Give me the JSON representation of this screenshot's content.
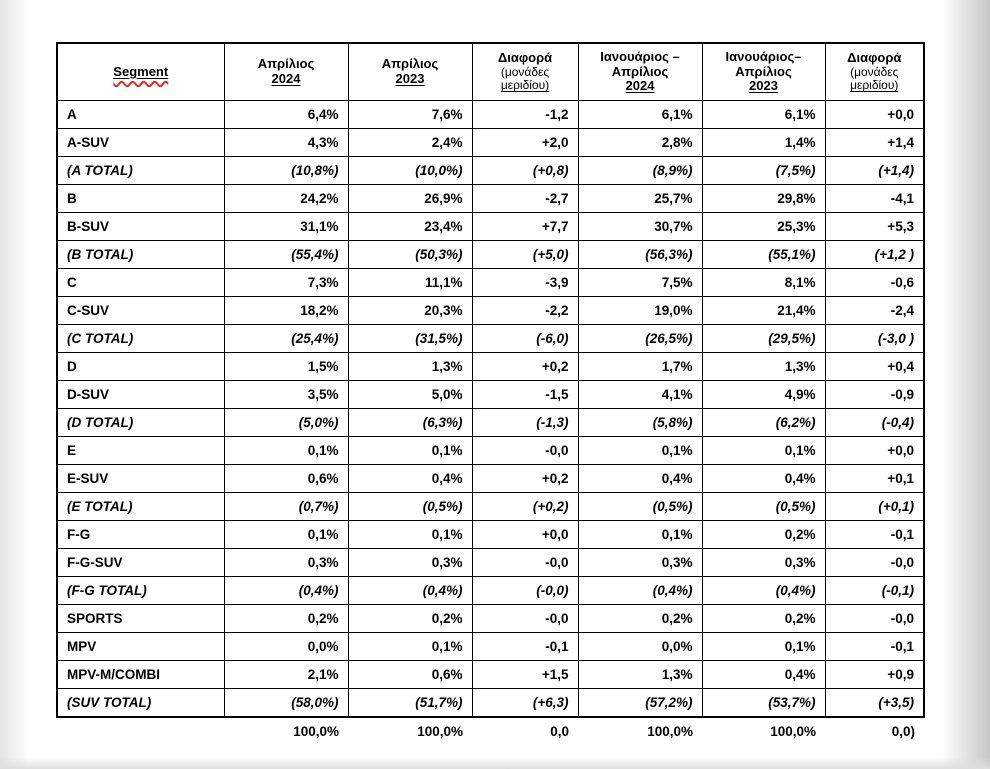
{
  "table": {
    "columns": [
      {
        "id": "segment",
        "lines": [
          "Segment"
        ],
        "spellcheck": true
      },
      {
        "id": "april-2024",
        "lines": [
          "Απρίλιος",
          "2024"
        ]
      },
      {
        "id": "april-2023",
        "lines": [
          "Απρίλιος",
          "2023"
        ]
      },
      {
        "id": "diff-month",
        "lines": [
          "Διαφορά"
        ],
        "sub_lines": [
          "(μονάδες",
          "μεριδίου)"
        ]
      },
      {
        "id": "jan-april-2024",
        "lines": [
          "Ιανουάριος –",
          "Απρίλιος",
          "2024"
        ]
      },
      {
        "id": "jan-april-2023",
        "lines": [
          "Ιανουάριος–",
          "Απρίλιος",
          "2023"
        ]
      },
      {
        "id": "diff-ytd",
        "lines": [
          "Διαφορά"
        ],
        "sub_lines": [
          "(μονάδες",
          "μεριδίου)"
        ]
      }
    ],
    "rows": [
      {
        "segment": "A",
        "is_total": false,
        "values": [
          "6,4%",
          "7,6%",
          "-1,2",
          "6,1%",
          "6,1%",
          "+0,0"
        ]
      },
      {
        "segment": "A-SUV",
        "is_total": false,
        "values": [
          "4,3%",
          "2,4%",
          "+2,0",
          "2,8%",
          "1,4%",
          "+1,4"
        ]
      },
      {
        "segment": "(A TOTAL)",
        "is_total": true,
        "values": [
          "(10,8%)",
          "(10,0%)",
          "(+0,8)",
          "(8,9%)",
          "(7,5%)",
          "(+1,4)"
        ]
      },
      {
        "segment": "B",
        "is_total": false,
        "values": [
          "24,2%",
          "26,9%",
          "-2,7",
          "25,7%",
          "29,8%",
          "-4,1"
        ]
      },
      {
        "segment": "B-SUV",
        "is_total": false,
        "values": [
          "31,1%",
          "23,4%",
          "+7,7",
          "30,7%",
          "25,3%",
          "+5,3"
        ]
      },
      {
        "segment": "(B TOTAL)",
        "is_total": true,
        "values": [
          "(55,4%)",
          "(50,3%)",
          "(+5,0)",
          "(56,3%)",
          "(55,1%)",
          "(+1,2 )"
        ]
      },
      {
        "segment": "C",
        "is_total": false,
        "values": [
          "7,3%",
          "11,1%",
          "-3,9",
          "7,5%",
          "8,1%",
          "-0,6"
        ]
      },
      {
        "segment": "C-SUV",
        "is_total": false,
        "values": [
          "18,2%",
          "20,3%",
          "-2,2",
          "19,0%",
          "21,4%",
          "-2,4"
        ]
      },
      {
        "segment": "(C TOTAL)",
        "is_total": true,
        "values": [
          "(25,4%)",
          "(31,5%)",
          "(-6,0)",
          "(26,5%)",
          "(29,5%)",
          "(-3,0 )"
        ]
      },
      {
        "segment": "D",
        "is_total": false,
        "values": [
          "1,5%",
          "1,3%",
          "+0,2",
          "1,7%",
          "1,3%",
          "+0,4"
        ]
      },
      {
        "segment": "D-SUV",
        "is_total": false,
        "values": [
          "3,5%",
          "5,0%",
          "-1,5",
          "4,1%",
          "4,9%",
          "-0,9"
        ]
      },
      {
        "segment": "(D TOTAL)",
        "is_total": true,
        "values": [
          "(5,0%)",
          "(6,3%)",
          "(-1,3)",
          "(5,8%)",
          "(6,2%)",
          "(-0,4)"
        ]
      },
      {
        "segment": "E",
        "is_total": false,
        "values": [
          "0,1%",
          "0,1%",
          "-0,0",
          "0,1%",
          "0,1%",
          "+0,0"
        ]
      },
      {
        "segment": "E-SUV",
        "is_total": false,
        "values": [
          "0,6%",
          "0,4%",
          "+0,2",
          "0,4%",
          "0,4%",
          "+0,1"
        ]
      },
      {
        "segment": "(E TOTAL)",
        "is_total": true,
        "values": [
          "(0,7%)",
          "(0,5%)",
          "(+0,2)",
          "(0,5%)",
          "(0,5%)",
          "(+0,1)"
        ]
      },
      {
        "segment": "F-G",
        "is_total": false,
        "values": [
          "0,1%",
          "0,1%",
          "+0,0",
          "0,1%",
          "0,2%",
          "-0,1"
        ]
      },
      {
        "segment": "F-G-SUV",
        "is_total": false,
        "values": [
          "0,3%",
          "0,3%",
          "-0,0",
          "0,3%",
          "0,3%",
          "-0,0"
        ]
      },
      {
        "segment": "(F-G TOTAL)",
        "is_total": true,
        "values": [
          "(0,4%)",
          "(0,4%)",
          "(-0,0)",
          "(0,4%)",
          "(0,4%)",
          "(-0,1)"
        ]
      },
      {
        "segment": "SPORTS",
        "is_total": false,
        "values": [
          "0,2%",
          "0,2%",
          "-0,0",
          "0,2%",
          "0,2%",
          "-0,0"
        ]
      },
      {
        "segment": "MPV",
        "is_total": false,
        "values": [
          "0,0%",
          "0,1%",
          "-0,1",
          "0,0%",
          "0,1%",
          "-0,1"
        ]
      },
      {
        "segment": "MPV-M/COMBI",
        "is_total": false,
        "values": [
          "2,1%",
          "0,6%",
          "+1,5",
          "1,3%",
          "0,4%",
          "+0,9"
        ]
      },
      {
        "segment": "(SUV TOTAL)",
        "is_total": true,
        "values": [
          "(58,0%)",
          "(51,7%)",
          "(+6,3)",
          "(57,2%)",
          "(53,7%)",
          "(+3,5)"
        ]
      }
    ],
    "footer": {
      "values": [
        "",
        "100,0%",
        "100,0%",
        "0,0",
        "100,0%",
        "100,0%",
        "0,0)"
      ]
    }
  },
  "colors": {
    "border": "#000000",
    "text": "#000000",
    "spellcheck_squiggle": "#e02b20",
    "page_shadow": "#c7c7c7"
  }
}
